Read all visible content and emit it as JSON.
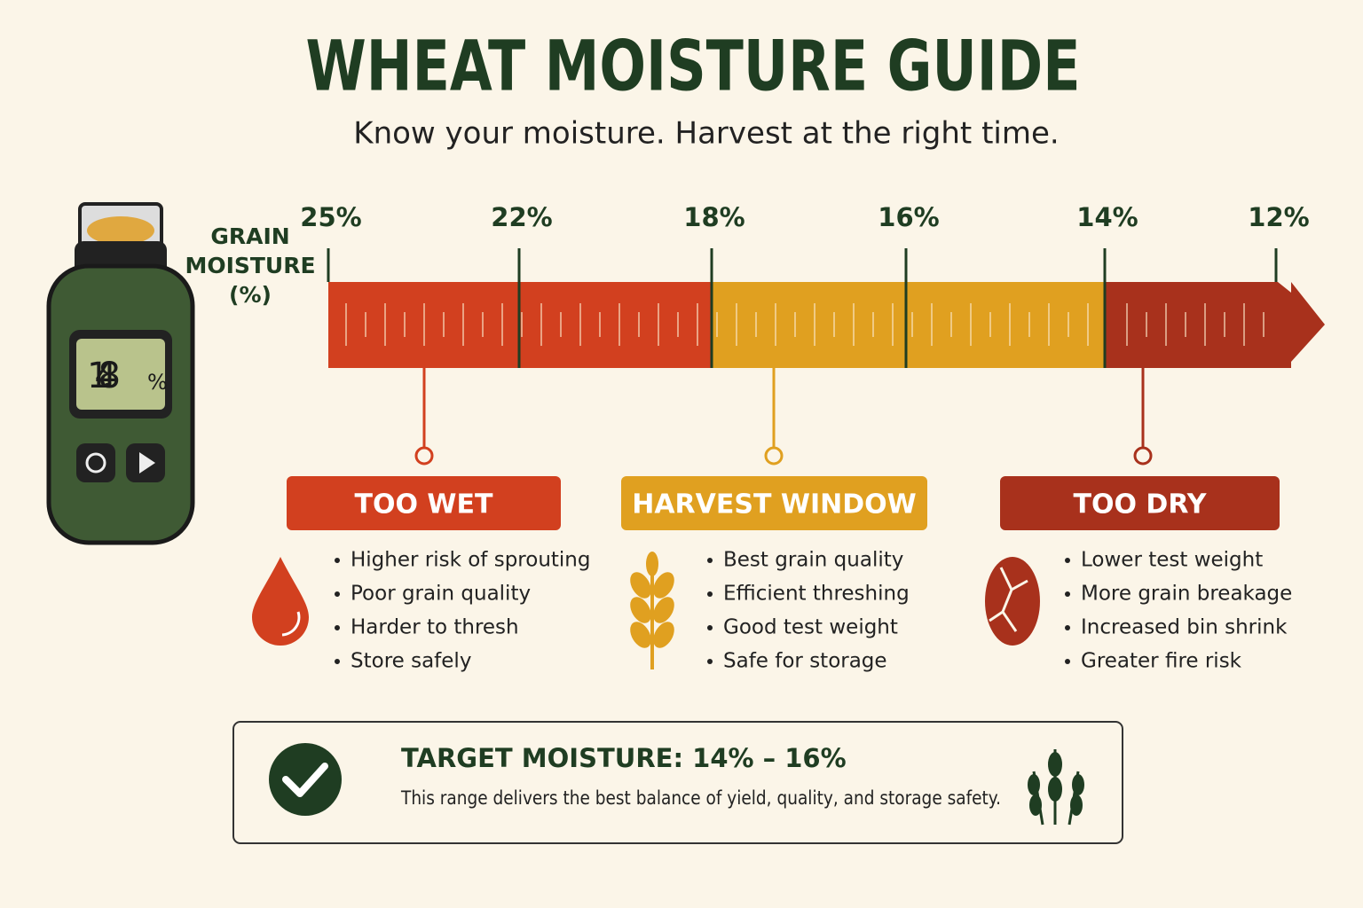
{
  "header": {
    "title": "WHEAT MOISTURE GUIDE",
    "subtitle": "Know your moisture.  Harvest at the right time."
  },
  "meter": {
    "reading": "14.8",
    "unit": "%"
  },
  "scale": {
    "label": [
      "GRAIN",
      "MOISTURE",
      "(%)"
    ],
    "ticks": [
      "25%",
      "22%",
      "18%",
      "16%",
      "14%",
      "12%"
    ]
  },
  "zones": [
    {
      "title": "TOO WET",
      "items": [
        "Higher risk of sprouting",
        "Poor grain quality",
        "Harder to thresh",
        "Store safely"
      ]
    },
    {
      "title": "HARVEST WINDOW",
      "items": [
        "Best grain quality",
        "Efficient threshing",
        "Good test weight",
        "Safe for storage"
      ]
    },
    {
      "title": "TOO DRY",
      "items": [
        "Lower test weight",
        "More grain breakage",
        "Increased bin shrink",
        "Greater fire risk"
      ]
    }
  ],
  "target": {
    "title": "TARGET MOISTURE: 14% – 16%",
    "text": "This range delivers the best balance of yield, quality, and storage safety."
  }
}
